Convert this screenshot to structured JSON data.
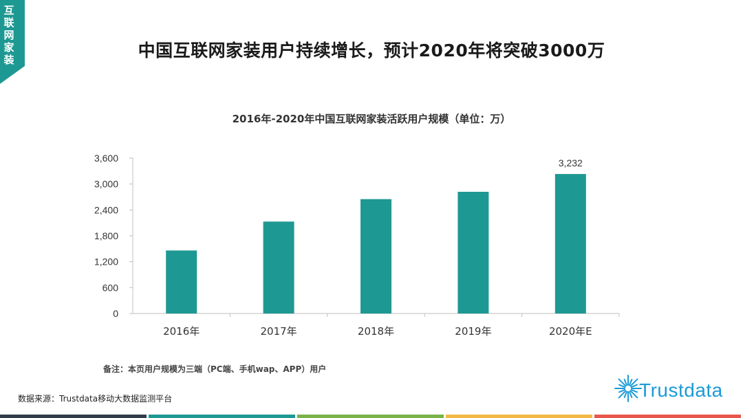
{
  "corner_tag": "互联网家装",
  "headline": "中国互联网家装用户持续增长，预计2020年将突破3000万",
  "note": "备注：本页用户规模为三端（PC端、手机wap、APP）用户",
  "source": "数据来源：Trustdata移动大数据监测平台",
  "logo_text": "Trustdata",
  "colors": {
    "accent": "#1e9892",
    "brand": "#1c9ad6",
    "bottom_bar": [
      "#2f3d4a",
      "#1e9892",
      "#7ab24a",
      "#f4b942",
      "#e9574c"
    ]
  },
  "chart_data": {
    "type": "bar",
    "title": "2016年-2020年中国互联网家装活跃用户规模（单位：万）",
    "categories": [
      "2016年",
      "2017年",
      "2018年",
      "2019年",
      "2020年E"
    ],
    "values": [
      1460,
      2130,
      2650,
      2820,
      3232
    ],
    "data_labels": [
      "",
      "",
      "",
      "",
      "3,232"
    ],
    "ylim": [
      0,
      3600
    ],
    "yticks": [
      0,
      600,
      1200,
      1800,
      2400,
      3000,
      3600
    ],
    "ytick_labels": [
      "0",
      "600",
      "1,200",
      "1,800",
      "2,400",
      "3,000",
      "3,600"
    ],
    "xlabel": "",
    "ylabel": "",
    "grid": false,
    "bar_color": "#1e9892"
  }
}
